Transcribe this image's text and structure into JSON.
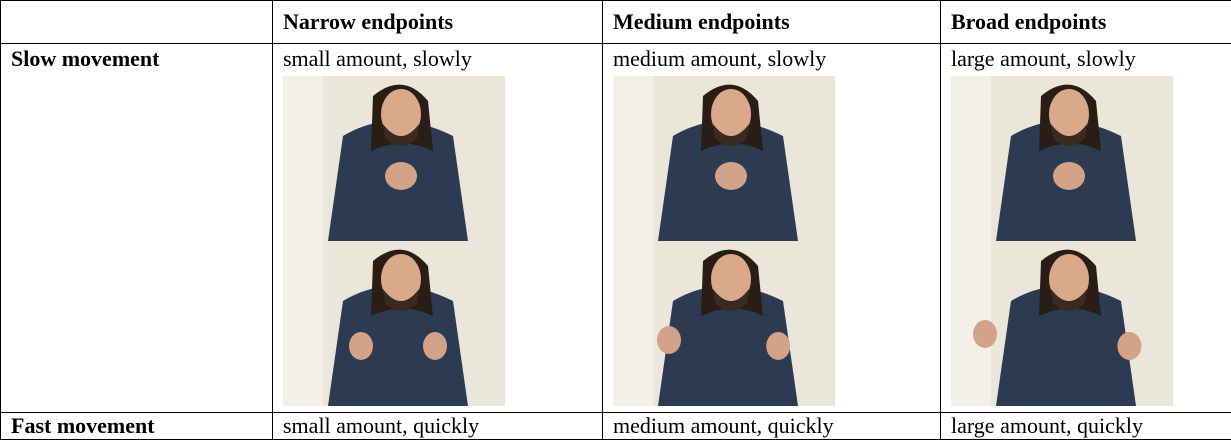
{
  "table": {
    "header": [
      "Narrow endpoints",
      "Medium endpoints",
      "Broad endpoints"
    ],
    "rows": [
      {
        "label": "Slow movement",
        "cells": [
          "small amount, slowly",
          "medium amount, slowly",
          "large amount, slowly"
        ]
      },
      {
        "label": "Fast movement",
        "cells": [
          "small amount, quickly",
          "medium amount, quickly",
          "large amount, quickly"
        ]
      }
    ]
  }
}
